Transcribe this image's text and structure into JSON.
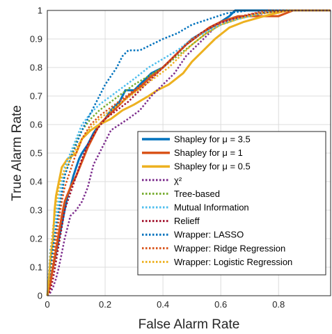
{
  "chart_data": {
    "type": "line",
    "title": "",
    "xlabel": "False Alarm Rate",
    "ylabel": "True Alarm Rate",
    "xlim": [
      0,
      0.98
    ],
    "ylim": [
      0,
      1
    ],
    "x_ticks": [
      "0",
      "0.2",
      "0.4",
      "0.6",
      "0.8"
    ],
    "y_ticks": [
      "0",
      "0.1",
      "0.2",
      "0.3",
      "0.4",
      "0.5",
      "0.6",
      "0.7",
      "0.8",
      "0.9",
      "1"
    ],
    "grid": true,
    "legend_position": "bottom-right",
    "series": [
      {
        "name": "Shapley for μ = 3.5",
        "color": "#0072BD",
        "style": "solid",
        "width": 3,
        "points": [
          [
            0,
            0
          ],
          [
            0.005,
            0.02
          ],
          [
            0.01,
            0.05
          ],
          [
            0.02,
            0.1
          ],
          [
            0.03,
            0.15
          ],
          [
            0.04,
            0.2
          ],
          [
            0.05,
            0.25
          ],
          [
            0.06,
            0.3
          ],
          [
            0.07,
            0.35
          ],
          [
            0.08,
            0.38
          ],
          [
            0.09,
            0.42
          ],
          [
            0.1,
            0.45
          ],
          [
            0.11,
            0.48
          ],
          [
            0.12,
            0.5
          ],
          [
            0.14,
            0.53
          ],
          [
            0.16,
            0.57
          ],
          [
            0.18,
            0.6
          ],
          [
            0.2,
            0.62
          ],
          [
            0.22,
            0.65
          ],
          [
            0.25,
            0.68
          ],
          [
            0.27,
            0.72
          ],
          [
            0.3,
            0.72
          ],
          [
            0.33,
            0.75
          ],
          [
            0.36,
            0.78
          ],
          [
            0.4,
            0.8
          ],
          [
            0.43,
            0.83
          ],
          [
            0.46,
            0.86
          ],
          [
            0.5,
            0.9
          ],
          [
            0.55,
            0.93
          ],
          [
            0.6,
            0.96
          ],
          [
            0.63,
            0.98
          ],
          [
            0.65,
            1.0
          ],
          [
            0.98,
            1.0
          ]
        ]
      },
      {
        "name": "Shapley for μ = 1",
        "color": "#D95319",
        "style": "solid",
        "width": 3,
        "points": [
          [
            0,
            0
          ],
          [
            0.01,
            0.04
          ],
          [
            0.02,
            0.1
          ],
          [
            0.03,
            0.16
          ],
          [
            0.04,
            0.22
          ],
          [
            0.05,
            0.28
          ],
          [
            0.06,
            0.33
          ],
          [
            0.08,
            0.38
          ],
          [
            0.1,
            0.42
          ],
          [
            0.12,
            0.47
          ],
          [
            0.14,
            0.52
          ],
          [
            0.16,
            0.56
          ],
          [
            0.18,
            0.6
          ],
          [
            0.21,
            0.63
          ],
          [
            0.24,
            0.66
          ],
          [
            0.28,
            0.7
          ],
          [
            0.32,
            0.73
          ],
          [
            0.36,
            0.77
          ],
          [
            0.4,
            0.8
          ],
          [
            0.44,
            0.84
          ],
          [
            0.48,
            0.88
          ],
          [
            0.52,
            0.91
          ],
          [
            0.56,
            0.94
          ],
          [
            0.6,
            0.96
          ],
          [
            0.66,
            0.98
          ],
          [
            0.8,
            0.98
          ],
          [
            0.85,
            1.0
          ],
          [
            0.98,
            1.0
          ]
        ]
      },
      {
        "name": "Shapley for μ = 0.5",
        "color": "#EDB120",
        "style": "solid",
        "width": 3,
        "points": [
          [
            0,
            0
          ],
          [
            0.005,
            0.05
          ],
          [
            0.01,
            0.12
          ],
          [
            0.02,
            0.2
          ],
          [
            0.025,
            0.3
          ],
          [
            0.03,
            0.35
          ],
          [
            0.04,
            0.4
          ],
          [
            0.05,
            0.45
          ],
          [
            0.07,
            0.48
          ],
          [
            0.1,
            0.5
          ],
          [
            0.12,
            0.55
          ],
          [
            0.15,
            0.58
          ],
          [
            0.18,
            0.6
          ],
          [
            0.22,
            0.62
          ],
          [
            0.26,
            0.65
          ],
          [
            0.3,
            0.67
          ],
          [
            0.35,
            0.7
          ],
          [
            0.38,
            0.72
          ],
          [
            0.42,
            0.74
          ],
          [
            0.47,
            0.78
          ],
          [
            0.5,
            0.82
          ],
          [
            0.54,
            0.86
          ],
          [
            0.58,
            0.9
          ],
          [
            0.63,
            0.94
          ],
          [
            0.68,
            0.96
          ],
          [
            0.75,
            0.98
          ],
          [
            0.83,
            1.0
          ],
          [
            0.98,
            1.0
          ]
        ]
      },
      {
        "name": "χ²",
        "color": "#7E2F8E",
        "style": "dotted",
        "width": 2.5,
        "points": [
          [
            0,
            0
          ],
          [
            0.01,
            0.01
          ],
          [
            0.02,
            0.03
          ],
          [
            0.03,
            0.06
          ],
          [
            0.04,
            0.1
          ],
          [
            0.05,
            0.15
          ],
          [
            0.06,
            0.2
          ],
          [
            0.07,
            0.24
          ],
          [
            0.08,
            0.28
          ],
          [
            0.1,
            0.3
          ],
          [
            0.12,
            0.33
          ],
          [
            0.14,
            0.38
          ],
          [
            0.16,
            0.46
          ],
          [
            0.18,
            0.5
          ],
          [
            0.2,
            0.54
          ],
          [
            0.22,
            0.58
          ],
          [
            0.25,
            0.6
          ],
          [
            0.28,
            0.62
          ],
          [
            0.32,
            0.65
          ],
          [
            0.36,
            0.7
          ],
          [
            0.4,
            0.74
          ],
          [
            0.44,
            0.78
          ],
          [
            0.48,
            0.84
          ],
          [
            0.52,
            0.88
          ],
          [
            0.56,
            0.92
          ],
          [
            0.6,
            0.96
          ],
          [
            0.7,
            0.98
          ],
          [
            0.8,
            1.0
          ],
          [
            0.98,
            1.0
          ]
        ]
      },
      {
        "name": "Tree-based",
        "color": "#77AC30",
        "style": "dotted",
        "width": 2.5,
        "points": [
          [
            0,
            0
          ],
          [
            0.01,
            0.06
          ],
          [
            0.02,
            0.14
          ],
          [
            0.03,
            0.22
          ],
          [
            0.04,
            0.3
          ],
          [
            0.05,
            0.36
          ],
          [
            0.06,
            0.42
          ],
          [
            0.08,
            0.48
          ],
          [
            0.1,
            0.54
          ],
          [
            0.12,
            0.58
          ],
          [
            0.15,
            0.62
          ],
          [
            0.18,
            0.65
          ],
          [
            0.22,
            0.68
          ],
          [
            0.26,
            0.71
          ],
          [
            0.3,
            0.74
          ],
          [
            0.35,
            0.77
          ],
          [
            0.4,
            0.8
          ],
          [
            0.45,
            0.84
          ],
          [
            0.5,
            0.88
          ],
          [
            0.55,
            0.92
          ],
          [
            0.6,
            0.95
          ],
          [
            0.66,
            0.97
          ],
          [
            0.74,
            0.99
          ],
          [
            0.82,
            1.0
          ],
          [
            0.98,
            1.0
          ]
        ]
      },
      {
        "name": "Mutual Information",
        "color": "#4DBEEE",
        "style": "dotted",
        "width": 2.5,
        "points": [
          [
            0,
            0
          ],
          [
            0.005,
            0.08
          ],
          [
            0.01,
            0.16
          ],
          [
            0.02,
            0.22
          ],
          [
            0.03,
            0.28
          ],
          [
            0.04,
            0.34
          ],
          [
            0.05,
            0.4
          ],
          [
            0.06,
            0.45
          ],
          [
            0.08,
            0.5
          ],
          [
            0.1,
            0.55
          ],
          [
            0.12,
            0.6
          ],
          [
            0.15,
            0.64
          ],
          [
            0.18,
            0.67
          ],
          [
            0.22,
            0.7
          ],
          [
            0.26,
            0.73
          ],
          [
            0.3,
            0.76
          ],
          [
            0.35,
            0.8
          ],
          [
            0.4,
            0.83
          ],
          [
            0.45,
            0.86
          ],
          [
            0.5,
            0.9
          ],
          [
            0.56,
            0.93
          ],
          [
            0.62,
            0.96
          ],
          [
            0.7,
            0.98
          ],
          [
            0.78,
            1.0
          ],
          [
            0.98,
            1.0
          ]
        ]
      },
      {
        "name": "Relieff",
        "color": "#A2142F",
        "style": "dotted",
        "width": 2.5,
        "points": [
          [
            0,
            0
          ],
          [
            0.01,
            0.02
          ],
          [
            0.02,
            0.06
          ],
          [
            0.03,
            0.12
          ],
          [
            0.04,
            0.18
          ],
          [
            0.05,
            0.24
          ],
          [
            0.06,
            0.3
          ],
          [
            0.08,
            0.36
          ],
          [
            0.1,
            0.42
          ],
          [
            0.12,
            0.48
          ],
          [
            0.14,
            0.53
          ],
          [
            0.17,
            0.58
          ],
          [
            0.2,
            0.62
          ],
          [
            0.24,
            0.65
          ],
          [
            0.28,
            0.68
          ],
          [
            0.32,
            0.72
          ],
          [
            0.36,
            0.76
          ],
          [
            0.4,
            0.8
          ],
          [
            0.44,
            0.84
          ],
          [
            0.48,
            0.88
          ],
          [
            0.53,
            0.92
          ],
          [
            0.58,
            0.95
          ],
          [
            0.64,
            0.97
          ],
          [
            0.72,
            0.99
          ],
          [
            0.85,
            1.0
          ],
          [
            0.98,
            1.0
          ]
        ]
      },
      {
        "name": "Wrapper: LASSO",
        "color": "#0072BD",
        "style": "dotted",
        "width": 2.5,
        "points": [
          [
            0,
            0
          ],
          [
            0.005,
            0.04
          ],
          [
            0.01,
            0.1
          ],
          [
            0.02,
            0.17
          ],
          [
            0.03,
            0.24
          ],
          [
            0.04,
            0.3
          ],
          [
            0.05,
            0.36
          ],
          [
            0.06,
            0.42
          ],
          [
            0.08,
            0.48
          ],
          [
            0.1,
            0.53
          ],
          [
            0.12,
            0.58
          ],
          [
            0.14,
            0.62
          ],
          [
            0.16,
            0.66
          ],
          [
            0.18,
            0.7
          ],
          [
            0.2,
            0.74
          ],
          [
            0.22,
            0.77
          ],
          [
            0.24,
            0.8
          ],
          [
            0.26,
            0.84
          ],
          [
            0.28,
            0.86
          ],
          [
            0.32,
            0.86
          ],
          [
            0.36,
            0.88
          ],
          [
            0.4,
            0.9
          ],
          [
            0.45,
            0.92
          ],
          [
            0.5,
            0.95
          ],
          [
            0.56,
            0.97
          ],
          [
            0.62,
            0.99
          ],
          [
            0.7,
            1.0
          ],
          [
            0.98,
            1.0
          ]
        ]
      },
      {
        "name": "Wrapper: Ridge Regression",
        "color": "#D95319",
        "style": "dotted",
        "width": 2.5,
        "points": [
          [
            0,
            0
          ],
          [
            0.01,
            0.05
          ],
          [
            0.02,
            0.12
          ],
          [
            0.03,
            0.2
          ],
          [
            0.04,
            0.27
          ],
          [
            0.05,
            0.33
          ],
          [
            0.06,
            0.38
          ],
          [
            0.08,
            0.44
          ],
          [
            0.1,
            0.5
          ],
          [
            0.12,
            0.55
          ],
          [
            0.15,
            0.6
          ],
          [
            0.18,
            0.63
          ],
          [
            0.22,
            0.66
          ],
          [
            0.26,
            0.69
          ],
          [
            0.3,
            0.72
          ],
          [
            0.34,
            0.75
          ],
          [
            0.38,
            0.78
          ],
          [
            0.42,
            0.82
          ],
          [
            0.46,
            0.86
          ],
          [
            0.5,
            0.9
          ],
          [
            0.55,
            0.93
          ],
          [
            0.6,
            0.96
          ],
          [
            0.67,
            0.98
          ],
          [
            0.76,
            1.0
          ],
          [
            0.98,
            1.0
          ]
        ]
      },
      {
        "name": "Wrapper: Logistic Regression",
        "color": "#EDB120",
        "style": "dotted",
        "width": 2.5,
        "points": [
          [
            0,
            0
          ],
          [
            0.005,
            0.06
          ],
          [
            0.01,
            0.14
          ],
          [
            0.02,
            0.24
          ],
          [
            0.03,
            0.32
          ],
          [
            0.04,
            0.38
          ],
          [
            0.05,
            0.42
          ],
          [
            0.07,
            0.46
          ],
          [
            0.09,
            0.5
          ],
          [
            0.12,
            0.55
          ],
          [
            0.15,
            0.59
          ],
          [
            0.18,
            0.62
          ],
          [
            0.22,
            0.65
          ],
          [
            0.26,
            0.68
          ],
          [
            0.3,
            0.71
          ],
          [
            0.34,
            0.74
          ],
          [
            0.38,
            0.77
          ],
          [
            0.42,
            0.8
          ],
          [
            0.46,
            0.84
          ],
          [
            0.5,
            0.88
          ],
          [
            0.55,
            0.92
          ],
          [
            0.6,
            0.95
          ],
          [
            0.66,
            0.97
          ],
          [
            0.74,
            0.99
          ],
          [
            0.85,
            1.0
          ],
          [
            0.98,
            1.0
          ]
        ]
      }
    ]
  }
}
